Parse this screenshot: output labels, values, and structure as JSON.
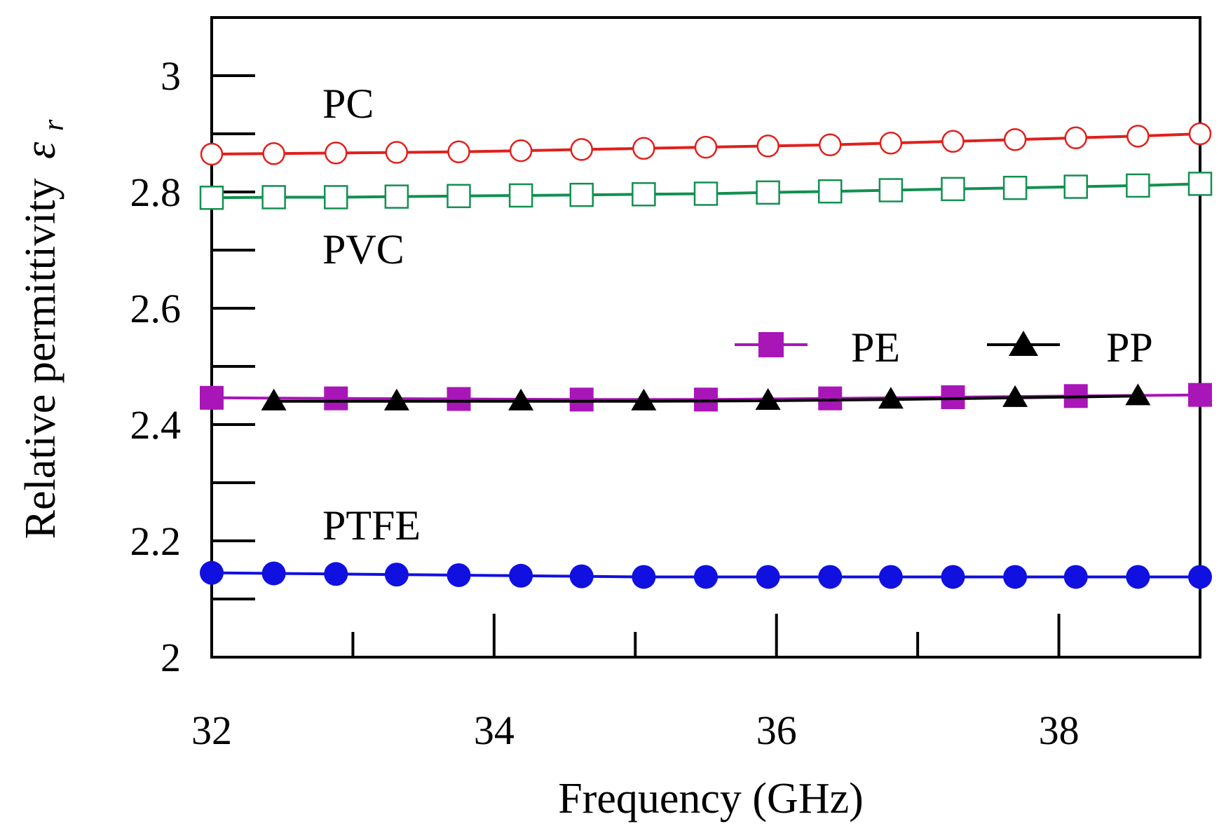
{
  "chart_data": {
    "type": "line",
    "title": "",
    "xlabel": "Frequency (GHz)",
    "ylabel": "Relative permittivity",
    "ylabel_symbol": "ε",
    "ylabel_subscript": "r",
    "xlim": [
      32,
      39
    ],
    "ylim": [
      2,
      3.1
    ],
    "xticks": [
      32,
      34,
      36,
      38
    ],
    "xtick_labels": [
      "32",
      "34",
      "36",
      "38"
    ],
    "yticks": [
      2,
      2.2,
      2.4,
      2.6,
      2.8,
      3
    ],
    "ytick_labels": [
      "2",
      "2.2",
      "2.4",
      "2.6",
      "2.8",
      "3"
    ],
    "grid": false,
    "legend_position": "center-right",
    "series": [
      {
        "name": "PC",
        "color": "#e0201b",
        "marker": "circle-open",
        "x": [
          32.0,
          32.44,
          32.88,
          33.31,
          33.75,
          34.19,
          34.62,
          35.06,
          35.5,
          35.94,
          36.38,
          36.81,
          37.25,
          37.69,
          38.12,
          38.56,
          39.0
        ],
        "values": [
          2.865,
          2.866,
          2.867,
          2.868,
          2.869,
          2.871,
          2.873,
          2.875,
          2.877,
          2.879,
          2.881,
          2.884,
          2.887,
          2.89,
          2.893,
          2.896,
          2.9
        ]
      },
      {
        "name": "PVC",
        "color": "#119050",
        "marker": "square-open",
        "x": [
          32.0,
          32.44,
          32.88,
          33.31,
          33.75,
          34.19,
          34.62,
          35.06,
          35.5,
          35.94,
          36.38,
          36.81,
          37.25,
          37.69,
          38.12,
          38.56,
          39.0
        ],
        "values": [
          2.79,
          2.791,
          2.791,
          2.792,
          2.793,
          2.794,
          2.795,
          2.796,
          2.797,
          2.799,
          2.801,
          2.803,
          2.805,
          2.807,
          2.809,
          2.811,
          2.814
        ]
      },
      {
        "name": "PE",
        "color": "#a816b8",
        "marker": "square-filled",
        "x": [
          32.0,
          32.88,
          33.75,
          34.62,
          35.5,
          36.38,
          37.25,
          38.12,
          39.0
        ],
        "values": [
          2.446,
          2.445,
          2.444,
          2.443,
          2.443,
          2.445,
          2.447,
          2.449,
          2.451
        ]
      },
      {
        "name": "PP",
        "color": "#000000",
        "marker": "triangle-filled",
        "x": [
          32.44,
          33.31,
          34.19,
          35.06,
          35.94,
          36.81,
          37.69,
          38.56
        ],
        "values": [
          2.44,
          2.44,
          2.44,
          2.44,
          2.441,
          2.443,
          2.446,
          2.449
        ]
      },
      {
        "name": "PTFE",
        "color": "#1010e0",
        "marker": "circle-filled",
        "x": [
          32.0,
          32.44,
          32.88,
          33.31,
          33.75,
          34.19,
          34.62,
          35.06,
          35.5,
          35.94,
          36.38,
          36.81,
          37.25,
          37.69,
          38.12,
          38.56,
          39.0
        ],
        "values": [
          2.145,
          2.144,
          2.143,
          2.142,
          2.141,
          2.14,
          2.139,
          2.138,
          2.138,
          2.138,
          2.138,
          2.138,
          2.138,
          2.138,
          2.138,
          2.138,
          2.138
        ]
      }
    ],
    "annotations": [
      "PC",
      "PVC",
      "PTFE"
    ],
    "legend_entries": [
      "PE",
      "PP"
    ]
  }
}
